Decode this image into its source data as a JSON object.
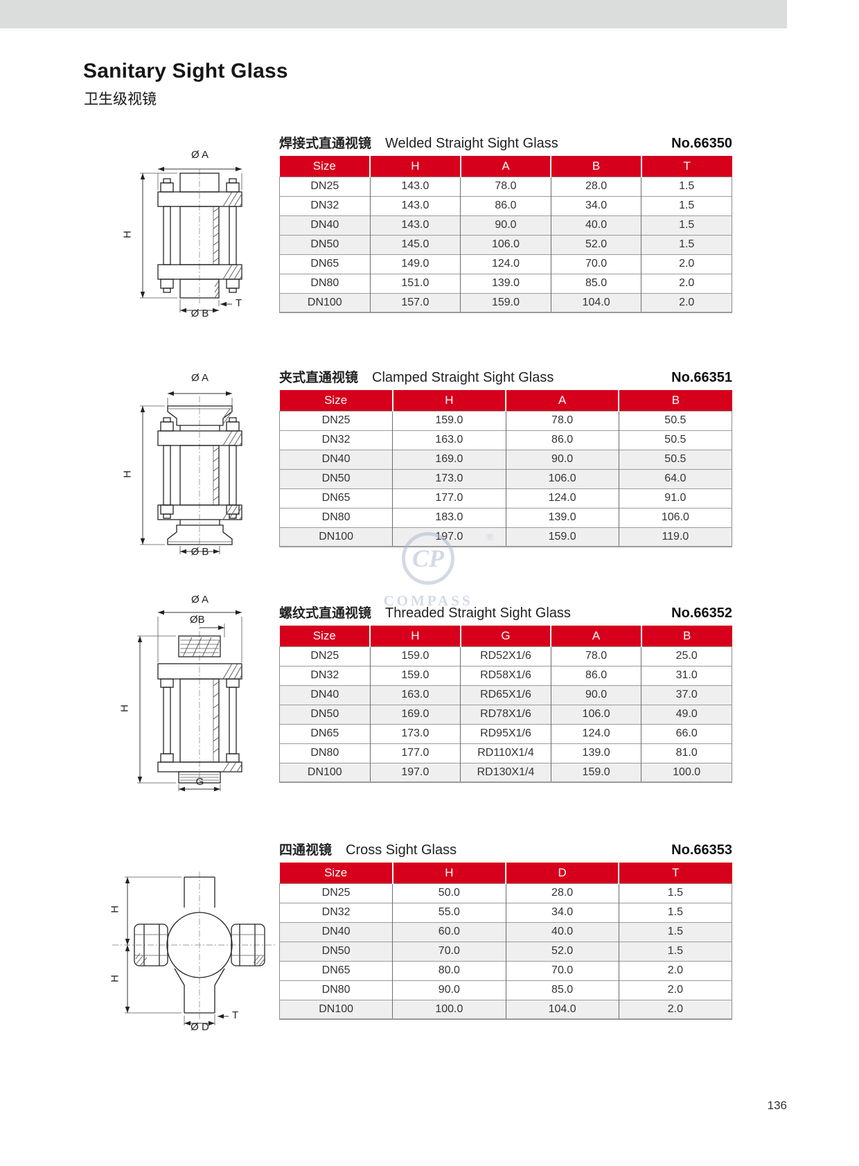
{
  "page": {
    "title": "Sanitary Sight Glass",
    "subtitle_cn": "卫生级视镜",
    "page_number": "136"
  },
  "watermark": {
    "logo_text": "CP",
    "registered_mark": "®",
    "brand": "COMPASS"
  },
  "colors": {
    "accent_red": "#d6001c",
    "row_shade": "#efefef",
    "header_bar_gray": "#dbdcdc",
    "watermark_blue": "#a9b7cd"
  },
  "sections": [
    {
      "id": "welded",
      "title_cn": "焊接式直通视镜",
      "title_en": "Welded Straight Sight Glass",
      "model_no": "No.66350",
      "columns": [
        "Size",
        "H",
        "A",
        "B",
        "T"
      ],
      "rows": [
        [
          "DN25",
          "143.0",
          "78.0",
          "28.0",
          "1.5"
        ],
        [
          "DN32",
          "143.0",
          "86.0",
          "34.0",
          "1.5"
        ],
        [
          "DN40",
          "143.0",
          "90.0",
          "40.0",
          "1.5"
        ],
        [
          "DN50",
          "145.0",
          "106.0",
          "52.0",
          "1.5"
        ],
        [
          "DN65",
          "149.0",
          "124.0",
          "70.0",
          "2.0"
        ],
        [
          "DN80",
          "151.0",
          "139.0",
          "85.0",
          "2.0"
        ],
        [
          "DN100",
          "157.0",
          "159.0",
          "104.0",
          "2.0"
        ]
      ],
      "drawing": {
        "labels": {
          "top": "Ø A",
          "left": "H",
          "thickness": "T",
          "bottom": "Ø B"
        }
      }
    },
    {
      "id": "clamped",
      "title_cn": "夹式直通视镜",
      "title_en": "Clamped Straight Sight Glass",
      "model_no": "No.66351",
      "columns": [
        "Size",
        "H",
        "A",
        "B"
      ],
      "rows": [
        [
          "DN25",
          "159.0",
          "78.0",
          "50.5"
        ],
        [
          "DN32",
          "163.0",
          "86.0",
          "50.5"
        ],
        [
          "DN40",
          "169.0",
          "90.0",
          "50.5"
        ],
        [
          "DN50",
          "173.0",
          "106.0",
          "64.0"
        ],
        [
          "DN65",
          "177.0",
          "124.0",
          "91.0"
        ],
        [
          "DN80",
          "183.0",
          "139.0",
          "106.0"
        ],
        [
          "DN100",
          "197.0",
          "159.0",
          "119.0"
        ]
      ],
      "drawing": {
        "labels": {
          "top": "Ø A",
          "left": "H",
          "bottom": "Ø B"
        }
      }
    },
    {
      "id": "threaded",
      "title_cn": "螺纹式直通视镜",
      "title_en": "Threaded Straight Sight Glass",
      "model_no": "No.66352",
      "columns": [
        "Size",
        "H",
        "G",
        "A",
        "B"
      ],
      "rows": [
        [
          "DN25",
          "159.0",
          "RD52X1/6",
          "78.0",
          "25.0"
        ],
        [
          "DN32",
          "159.0",
          "RD58X1/6",
          "86.0",
          "31.0"
        ],
        [
          "DN40",
          "163.0",
          "RD65X1/6",
          "90.0",
          "37.0"
        ],
        [
          "DN50",
          "169.0",
          "RD78X1/6",
          "106.0",
          "49.0"
        ],
        [
          "DN65",
          "173.0",
          "RD95X1/6",
          "124.0",
          "66.0"
        ],
        [
          "DN80",
          "177.0",
          "RD110X1/4",
          "139.0",
          "81.0"
        ],
        [
          "DN100",
          "197.0",
          "RD130X1/4",
          "159.0",
          "100.0"
        ]
      ],
      "drawing": {
        "labels": {
          "top": "Ø A",
          "top2": "ØB",
          "left": "H",
          "bottom": "G"
        }
      }
    },
    {
      "id": "cross",
      "title_cn": "四通视镜",
      "title_en": "Cross Sight Glass",
      "model_no": "No.66353",
      "columns": [
        "Size",
        "H",
        "D",
        "T"
      ],
      "rows": [
        [
          "DN25",
          "50.0",
          "28.0",
          "1.5"
        ],
        [
          "DN32",
          "55.0",
          "34.0",
          "1.5"
        ],
        [
          "DN40",
          "60.0",
          "40.0",
          "1.5"
        ],
        [
          "DN50",
          "70.0",
          "52.0",
          "1.5"
        ],
        [
          "DN65",
          "80.0",
          "70.0",
          "2.0"
        ],
        [
          "DN80",
          "90.0",
          "85.0",
          "2.0"
        ],
        [
          "DN100",
          "100.0",
          "104.0",
          "2.0"
        ]
      ],
      "drawing": {
        "labels": {
          "left_upper": "H",
          "left_lower": "H",
          "thickness": "T",
          "bottom": "Ø D"
        }
      }
    }
  ]
}
